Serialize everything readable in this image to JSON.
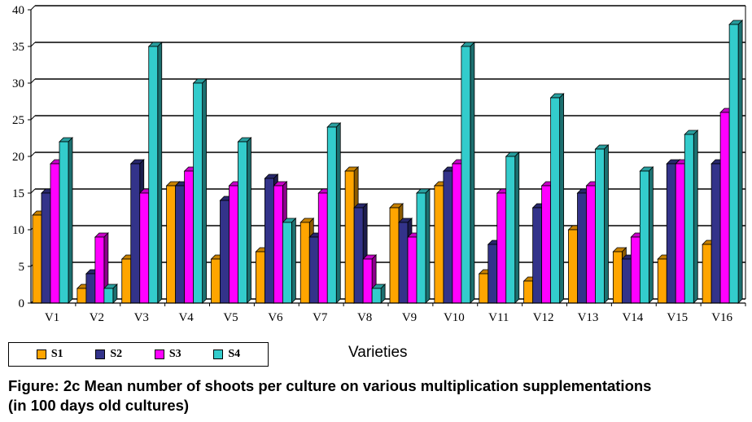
{
  "chart_data": {
    "type": "bar",
    "categories": [
      "V1",
      "V2",
      "V3",
      "V4",
      "V5",
      "V6",
      "V7",
      "V8",
      "V9",
      "V10",
      "V11",
      "V12",
      "V13",
      "V14",
      "V15",
      "V16"
    ],
    "series": [
      {
        "name": "S1",
        "color": "#FFA500",
        "values": [
          12,
          2,
          6,
          16,
          6,
          7,
          11,
          18,
          13,
          16,
          4,
          3,
          10,
          7,
          6,
          8
        ]
      },
      {
        "name": "S2",
        "color": "#33338A",
        "values": [
          15,
          4,
          19,
          16,
          14,
          17,
          9,
          13,
          11,
          18,
          8,
          13,
          15,
          6,
          19,
          19
        ]
      },
      {
        "name": "S3",
        "color": "#FF00FF",
        "values": [
          19,
          9,
          15,
          18,
          16,
          16,
          15,
          6,
          9,
          19,
          15,
          16,
          16,
          9,
          19,
          26
        ]
      },
      {
        "name": "S4",
        "color": "#33CCCC",
        "values": [
          22,
          2,
          35,
          30,
          22,
          11,
          24,
          2,
          15,
          35,
          20,
          28,
          21,
          18,
          23,
          38
        ]
      }
    ],
    "xlabel": "Varieties",
    "ylabel": "",
    "ylim": [
      0,
      40
    ],
    "yticks": [
      0,
      5,
      10,
      15,
      20,
      25,
      30,
      35,
      40
    ],
    "grid": true,
    "legend": "bottom-left"
  },
  "caption": {
    "line1": "Figure: 2c Mean number of shoots per culture on various multiplication supplementations",
    "line2": "(in 100 days old cultures)"
  }
}
